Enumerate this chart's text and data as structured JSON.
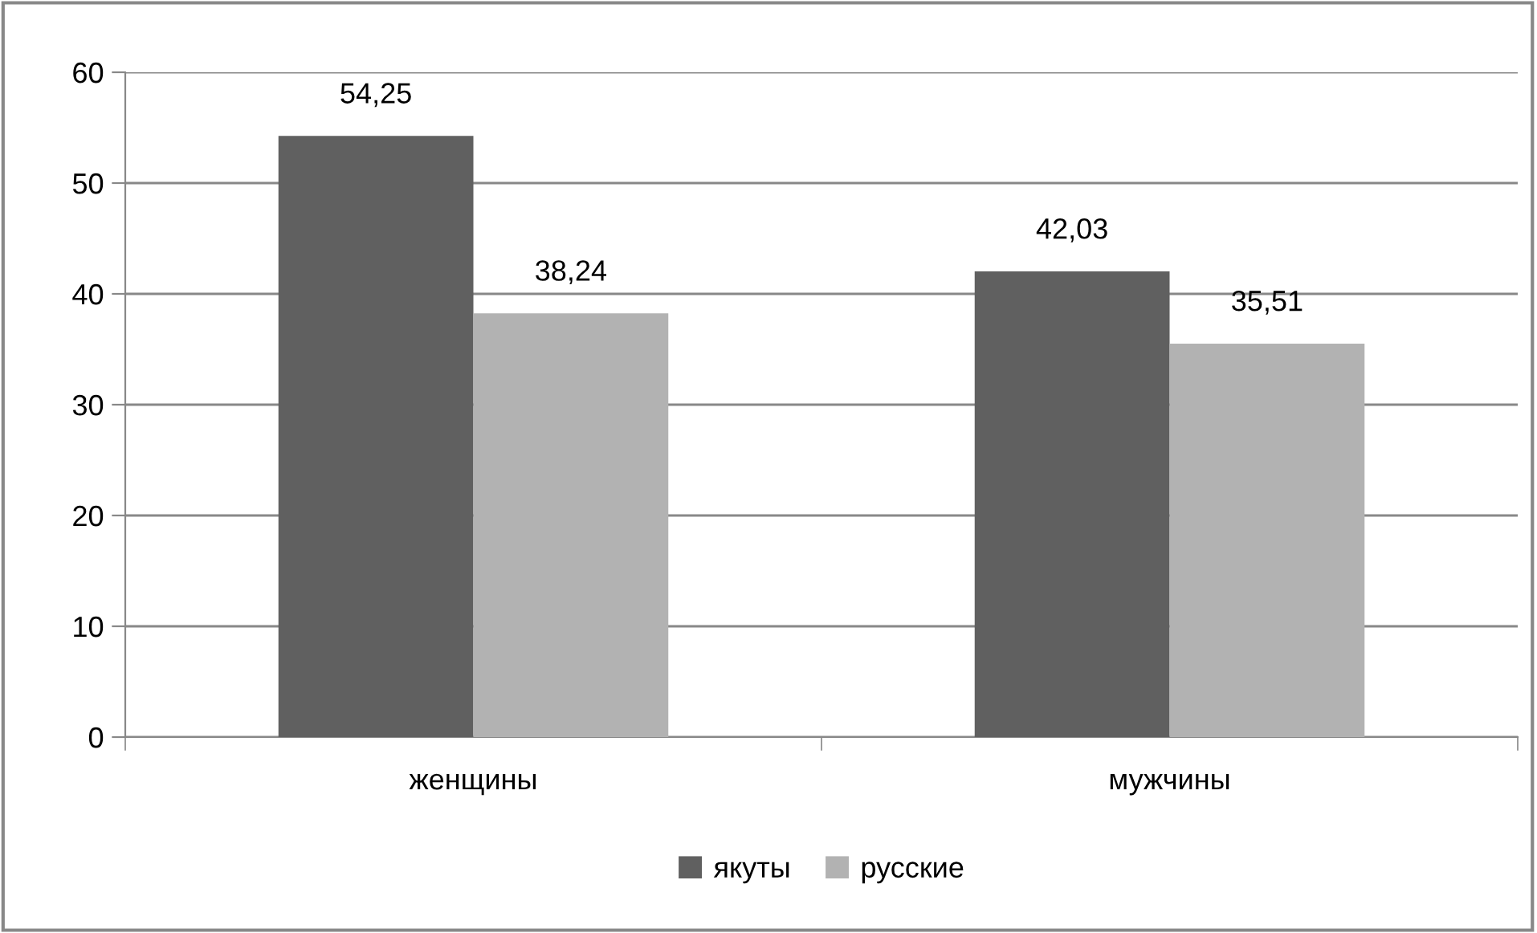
{
  "chart_data": {
    "type": "bar",
    "categories": [
      "женщины",
      "мужчины"
    ],
    "series": [
      {
        "name": "якуты",
        "color": "#606060",
        "values": [
          54.25,
          42.03
        ],
        "value_labels": [
          "54,25",
          "42,03"
        ]
      },
      {
        "name": "русские",
        "color": "#b2b2b2",
        "values": [
          38.24,
          35.51
        ],
        "value_labels": [
          "38,24",
          "35,51"
        ]
      }
    ],
    "ylim": [
      0,
      60
    ],
    "yticks": [
      0,
      10,
      20,
      30,
      40,
      50,
      60
    ],
    "grid": "y",
    "legend": "bottom"
  }
}
